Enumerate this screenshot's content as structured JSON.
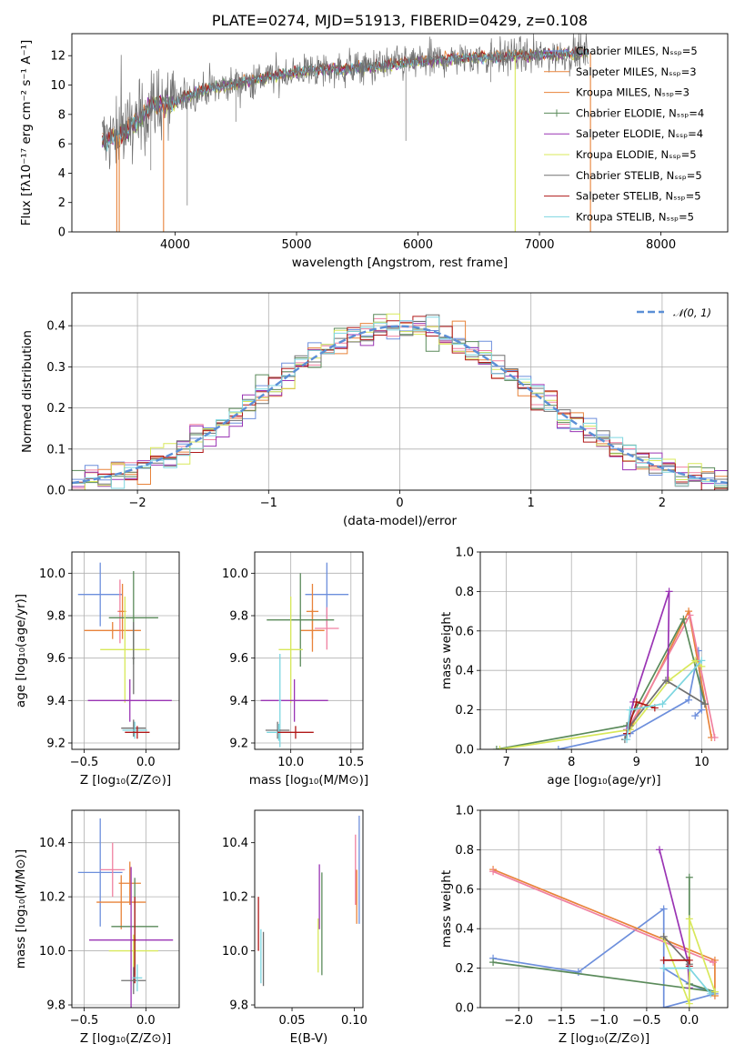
{
  "colors": {
    "chabrier_miles": "#6d8fdc",
    "salpeter_miles": "#e8833a",
    "kroupa_miles": "#e8833a",
    "chabrier_elodie": "#5a8a5a",
    "salpeter_elodie": "#9a34b4",
    "kroupa_elodie": "#d8e85a",
    "chabrier_stelib": "#707070",
    "salpeter_stelib": "#b01818",
    "kroupa_stelib": "#7dd6e0",
    "pink": "#f080a0",
    "normal_curve": "#5b8fd6"
  },
  "chart_data": [
    {
      "id": "spectrum",
      "type": "line",
      "title": "PLATE=0274, MJD=51913, FIBERID=0429, z=0.108",
      "xlabel": "wavelength [Angstrom, rest frame]",
      "ylabel": "Flux [fλ10⁻¹⁷ erg cm⁻² s⁻¹ A⁻¹]",
      "xlim": [
        3150,
        8550
      ],
      "ylim": [
        0,
        13.5
      ],
      "xticks": [
        "4000",
        "5000",
        "6000",
        "7000",
        "8000"
      ],
      "yticks": [
        "0",
        "2",
        "4",
        "6",
        "8",
        "10",
        "12"
      ],
      "legend_position": "right",
      "legend": [
        "Chabrier MILES, Nₛₛₚ=5",
        "Salpeter MILES, Nₛₛₚ=3",
        "Kroupa MILES, Nₛₛₚ=3",
        "Chabrier ELODIE, Nₛₛₚ=4",
        "Salpeter ELODIE, Nₛₛₚ=4",
        "Kroupa ELODIE, Nₛₛₚ=5",
        "Chabrier STELIB, Nₛₛₚ=5",
        "Salpeter STELIB, Nₛₛₚ=5",
        "Kroupa STELIB, Nₛₛₚ=5"
      ],
      "continuum": [
        [
          3400,
          6.2
        ],
        [
          3600,
          6.8
        ],
        [
          3800,
          8.6
        ],
        [
          4000,
          8.8
        ],
        [
          4200,
          9.6
        ],
        [
          4500,
          10.1
        ],
        [
          4800,
          10.6
        ],
        [
          5100,
          11.0
        ],
        [
          5400,
          11.1
        ],
        [
          5700,
          11.3
        ],
        [
          6000,
          11.6
        ],
        [
          6300,
          11.8
        ],
        [
          6600,
          11.9
        ],
        [
          6900,
          12.0
        ],
        [
          7200,
          12.1
        ],
        [
          7400,
          12.2
        ]
      ]
    },
    {
      "id": "residuals",
      "type": "histogram",
      "xlabel": "(data-model)/error",
      "ylabel": "Normed distribution",
      "xlim": [
        -2.5,
        2.5
      ],
      "ylim": [
        0,
        0.48
      ],
      "xticks": [
        "−2",
        "−1",
        "0",
        "1",
        "2"
      ],
      "yticks": [
        "0.0",
        "0.1",
        "0.2",
        "0.3",
        "0.4"
      ],
      "legend": [
        "𝒩(0, 1)"
      ],
      "legend_position": "top-right",
      "grid": true,
      "bin_width": 0.1
    },
    {
      "id": "age_vs_Z",
      "type": "errorbar",
      "xlabel": "Z [log₁₀(Z/Z⊙)]",
      "ylabel": "age  [log₁₀(age/yr)]",
      "xlim": [
        -0.6,
        0.27
      ],
      "ylim": [
        9.17,
        10.1
      ],
      "xticks": [
        "−0.5",
        "0.0"
      ],
      "yticks": [
        "9.2",
        "9.4",
        "9.6",
        "9.8",
        "10.0"
      ],
      "grid": true,
      "points": [
        {
          "x": -0.37,
          "xerr": 0.18,
          "y": 9.9,
          "yerr": 0.15,
          "c": "chabrier_miles"
        },
        {
          "x": -0.21,
          "xerr": 0.02,
          "y": 9.82,
          "yerr": 0.15,
          "c": "pink"
        },
        {
          "x": -0.19,
          "xerr": 0.03,
          "y": 9.82,
          "yerr": 0.13,
          "c": "salpeter_miles"
        },
        {
          "x": -0.27,
          "xerr": 0.23,
          "y": 9.73,
          "yerr": 0.04,
          "c": "salpeter_miles"
        },
        {
          "x": -0.1,
          "xerr": 0.2,
          "y": 9.79,
          "yerr": 0.22,
          "c": "chabrier_elodie"
        },
        {
          "x": -0.17,
          "xerr": 0.2,
          "y": 9.64,
          "yerr": 0.25,
          "c": "kroupa_elodie"
        },
        {
          "x": -0.13,
          "xerr": 0.34,
          "y": 9.4,
          "yerr": 0.1,
          "c": "salpeter_elodie"
        },
        {
          "x": -0.1,
          "xerr": 0.01,
          "y": 9.6,
          "yerr": 0.17,
          "c": "chabrier_stelib"
        },
        {
          "x": -0.1,
          "xerr": 0.1,
          "y": 9.27,
          "yerr": 0.04,
          "c": "chabrier_stelib"
        },
        {
          "x": -0.09,
          "xerr": 0.1,
          "y": 9.26,
          "yerr": 0.04,
          "c": "kroupa_stelib"
        },
        {
          "x": -0.07,
          "xerr": 0.1,
          "y": 9.25,
          "yerr": 0.03,
          "c": "salpeter_stelib"
        }
      ]
    },
    {
      "id": "age_vs_mass",
      "type": "errorbar",
      "xlabel": "mass [log₁₀(M/M⊙)]",
      "ylabel": "",
      "xlim": [
        9.7,
        10.6
      ],
      "ylim": [
        9.17,
        10.1
      ],
      "xticks": [
        "10.0",
        "10.5"
      ],
      "yticks": [
        "9.2",
        "9.4",
        "9.6",
        "9.8",
        "10.0"
      ],
      "grid": true,
      "points": [
        {
          "x": 10.3,
          "xerr": 0.18,
          "y": 9.9,
          "yerr": 0.15,
          "c": "chabrier_miles"
        },
        {
          "x": 10.3,
          "xerr": 0.1,
          "y": 9.74,
          "yerr": 0.1,
          "c": "pink"
        },
        {
          "x": 10.18,
          "xerr": 0.1,
          "y": 9.73,
          "yerr": 0.1,
          "c": "salpeter_miles"
        },
        {
          "x": 10.18,
          "xerr": 0.05,
          "y": 9.82,
          "yerr": 0.13,
          "c": "salpeter_miles"
        },
        {
          "x": 10.08,
          "xerr": 0.28,
          "y": 9.78,
          "yerr": 0.22,
          "c": "chabrier_elodie"
        },
        {
          "x": 10.0,
          "xerr": 0.1,
          "y": 9.64,
          "yerr": 0.25,
          "c": "kroupa_elodie"
        },
        {
          "x": 10.03,
          "xerr": 0.28,
          "y": 9.4,
          "yerr": 0.1,
          "c": "salpeter_elodie"
        },
        {
          "x": 9.91,
          "xerr": 0.01,
          "y": 9.4,
          "yerr": 0.22,
          "c": "kroupa_stelib"
        },
        {
          "x": 9.89,
          "xerr": 0.1,
          "y": 9.26,
          "yerr": 0.04,
          "c": "chabrier_stelib"
        },
        {
          "x": 9.9,
          "xerr": 0.1,
          "y": 9.25,
          "yerr": 0.04,
          "c": "kroupa_stelib"
        },
        {
          "x": 10.04,
          "xerr": 0.15,
          "y": 9.25,
          "yerr": 0.03,
          "c": "salpeter_stelib"
        }
      ]
    },
    {
      "id": "weight_vs_age",
      "type": "line",
      "xlabel": "age  [log₁₀(age/yr)]",
      "ylabel": "mass weight",
      "xlim": [
        6.6,
        10.4
      ],
      "ylim": [
        0,
        1.0
      ],
      "xticks": [
        "7",
        "8",
        "9",
        "10"
      ],
      "yticks": [
        "0.0",
        "0.2",
        "0.4",
        "0.6",
        "0.8",
        "1.0"
      ],
      "grid": true,
      "series": [
        {
          "c": "chabrier_miles",
          "x": [
            7.8,
            8.9,
            9.8,
            9.95,
            10.0,
            9.9
          ],
          "y": [
            0.0,
            0.08,
            0.25,
            0.5,
            0.2,
            0.17
          ]
        },
        {
          "c": "salpeter_miles",
          "x": [
            8.9,
            9.8,
            10.15
          ],
          "y": [
            0.1,
            0.7,
            0.06
          ]
        },
        {
          "c": "pink",
          "x": [
            8.9,
            9.82,
            10.2
          ],
          "y": [
            0.12,
            0.68,
            0.06
          ]
        },
        {
          "c": "chabrier_elodie",
          "x": [
            6.85,
            8.85,
            9.72,
            10.05
          ],
          "y": [
            0.0,
            0.12,
            0.66,
            0.23
          ]
        },
        {
          "c": "salpeter_elodie",
          "x": [
            8.85,
            8.95,
            9.5,
            9.48
          ],
          "y": [
            0.1,
            0.24,
            0.8,
            0.35
          ]
        },
        {
          "c": "kroupa_elodie",
          "x": [
            6.9,
            8.9,
            9.5,
            9.9,
            10.0
          ],
          "y": [
            0.0,
            0.1,
            0.35,
            0.45,
            0.42
          ]
        },
        {
          "c": "chabrier_stelib",
          "x": [
            8.82,
            8.9,
            9.45,
            10.05
          ],
          "y": [
            0.05,
            0.12,
            0.35,
            0.23
          ]
        },
        {
          "c": "salpeter_stelib",
          "x": [
            8.85,
            9.0,
            9.28
          ],
          "y": [
            0.08,
            0.24,
            0.21
          ]
        },
        {
          "c": "kroupa_stelib",
          "x": [
            8.85,
            8.9,
            9.4,
            10.0
          ],
          "y": [
            0.05,
            0.2,
            0.23,
            0.45
          ]
        }
      ]
    },
    {
      "id": "mass_vs_Z",
      "type": "errorbar",
      "xlabel": "Z [log₁₀(Z/Z⊙)]",
      "ylabel": "mass [log₁₀(M/M⊙)]",
      "xlim": [
        -0.6,
        0.27
      ],
      "ylim": [
        9.79,
        10.52
      ],
      "xticks": [
        "−0.5",
        "0.0"
      ],
      "yticks": [
        "9.8",
        "10.0",
        "10.2",
        "10.4"
      ],
      "grid": true,
      "points": [
        {
          "x": -0.37,
          "xerr": 0.18,
          "y": 10.29,
          "yerr": 0.2,
          "c": "chabrier_miles"
        },
        {
          "x": -0.27,
          "xerr": 0.1,
          "y": 10.3,
          "yerr": 0.1,
          "c": "pink"
        },
        {
          "x": -0.2,
          "xerr": 0.2,
          "y": 10.18,
          "yerr": 0.1,
          "c": "salpeter_miles"
        },
        {
          "x": -0.13,
          "xerr": 0.09,
          "y": 10.25,
          "yerr": 0.08,
          "c": "salpeter_miles"
        },
        {
          "x": -0.09,
          "xerr": 0.19,
          "y": 10.09,
          "yerr": 0.18,
          "c": "chabrier_elodie"
        },
        {
          "x": -0.1,
          "xerr": 0.2,
          "y": 10.0,
          "yerr": 0.06,
          "c": "kroupa_elodie"
        },
        {
          "x": -0.12,
          "xerr": 0.34,
          "y": 10.04,
          "yerr": 0.27,
          "c": "salpeter_elodie"
        },
        {
          "x": -0.09,
          "xerr": 0.01,
          "y": 10.04,
          "yerr": 0.16,
          "c": "salpeter_stelib"
        },
        {
          "x": -0.1,
          "xerr": 0.1,
          "y": 9.89,
          "yerr": 0.05,
          "c": "chabrier_stelib"
        },
        {
          "x": -0.07,
          "xerr": 0.04,
          "y": 9.9,
          "yerr": 0.05,
          "c": "kroupa_stelib"
        }
      ]
    },
    {
      "id": "mass_vs_ebv",
      "type": "errorbar",
      "xlabel": "E(B-V)",
      "ylabel": "",
      "xlim": [
        0.02,
        0.107
      ],
      "ylim": [
        9.79,
        10.52
      ],
      "xticks": [
        "0.05",
        "0.10"
      ],
      "yticks": [
        "9.8",
        "10.0",
        "10.2",
        "10.4"
      ],
      "grid": false,
      "points": [
        {
          "x": 0.104,
          "xerr": 0.0,
          "y": 10.3,
          "yerr": 0.2,
          "c": "chabrier_miles"
        },
        {
          "x": 0.102,
          "xerr": 0.0,
          "y": 10.2,
          "yerr": 0.1,
          "c": "salpeter_miles"
        },
        {
          "x": 0.101,
          "xerr": 0.0,
          "y": 10.3,
          "yerr": 0.13,
          "c": "pink"
        },
        {
          "x": 0.074,
          "xerr": 0.0,
          "y": 10.1,
          "yerr": 0.19,
          "c": "chabrier_elodie"
        },
        {
          "x": 0.072,
          "xerr": 0.0,
          "y": 10.2,
          "yerr": 0.12,
          "c": "salpeter_elodie"
        },
        {
          "x": 0.071,
          "xerr": 0.0,
          "y": 10.02,
          "yerr": 0.1,
          "c": "kroupa_elodie"
        },
        {
          "x": 0.023,
          "xerr": 0.0,
          "y": 10.1,
          "yerr": 0.1,
          "c": "salpeter_stelib"
        },
        {
          "x": 0.025,
          "xerr": 0.0,
          "y": 9.98,
          "yerr": 0.1,
          "c": "kroupa_stelib"
        },
        {
          "x": 0.027,
          "xerr": 0.0,
          "y": 9.97,
          "yerr": 0.1,
          "c": "chabrier_stelib"
        }
      ]
    },
    {
      "id": "weight_vs_Z",
      "type": "line",
      "xlabel": "Z [log₁₀(Z/Z⊙)]",
      "ylabel": "mass weight",
      "xlim": [
        -2.45,
        0.45
      ],
      "ylim": [
        0,
        1.0
      ],
      "xticks": [
        "−2.0",
        "−1.5",
        "−1.0",
        "−0.5",
        "0.0"
      ],
      "yticks": [
        "0.0",
        "0.2",
        "0.4",
        "0.6",
        "0.8",
        "1.0"
      ],
      "grid": true,
      "series": [
        {
          "c": "chabrier_miles",
          "x": [
            -2.3,
            -1.3,
            -0.3,
            -0.3,
            0.3,
            0.0,
            -0.3
          ],
          "y": [
            0.25,
            0.18,
            0.5,
            0.0,
            0.07,
            0.12,
            0.2
          ]
        },
        {
          "c": "salpeter_miles",
          "x": [
            -2.3,
            0.3,
            0.3
          ],
          "y": [
            0.7,
            0.24,
            0.06
          ]
        },
        {
          "c": "pink",
          "x": [
            -2.3,
            0.28
          ],
          "y": [
            0.69,
            0.23
          ]
        },
        {
          "c": "chabrier_elodie",
          "x": [
            -2.3,
            0.3,
            0.0,
            0.0
          ],
          "y": [
            0.23,
            0.08,
            0.12,
            0.66
          ]
        },
        {
          "c": "salpeter_elodie",
          "x": [
            -0.35,
            -0.02,
            0.0
          ],
          "y": [
            0.8,
            0.24,
            0.1
          ]
        },
        {
          "c": "kroupa_elodie",
          "x": [
            -0.3,
            0.0,
            0.0,
            0.3
          ],
          "y": [
            0.35,
            0.02,
            0.45,
            0.08
          ]
        },
        {
          "c": "chabrier_stelib",
          "x": [
            -0.3,
            0.0
          ],
          "y": [
            0.36,
            0.22
          ]
        },
        {
          "c": "salpeter_stelib",
          "x": [
            -0.3,
            0.0,
            0.0
          ],
          "y": [
            0.24,
            0.24,
            0.21
          ]
        },
        {
          "c": "kroupa_stelib",
          "x": [
            -0.3,
            0.0,
            0.25
          ],
          "y": [
            0.2,
            0.2,
            0.07
          ]
        }
      ]
    }
  ]
}
